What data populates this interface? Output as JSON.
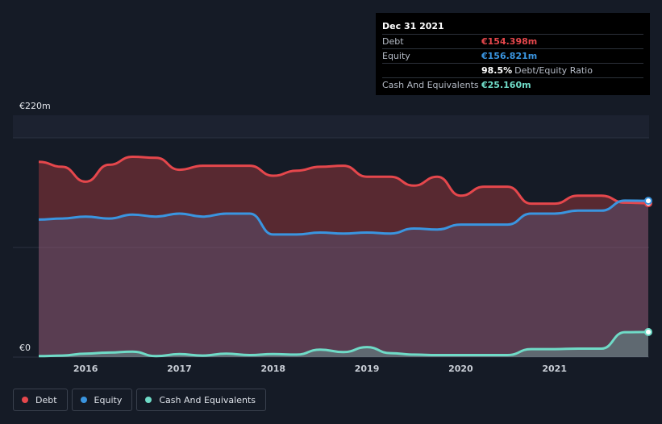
{
  "chart_data": {
    "type": "area",
    "title": "",
    "y_unit": "€m",
    "ylim": [
      0,
      220
    ],
    "y_axis_labels": {
      "top": "€220m",
      "bottom": "€0"
    },
    "x_ticks": [
      "2016",
      "2017",
      "2018",
      "2019",
      "2020",
      "2021"
    ],
    "x_tick_values": [
      2016.0,
      2017.0,
      2018.0,
      2019.0,
      2020.0,
      2021.0
    ],
    "xlim": [
      2015.5,
      2022.0
    ],
    "series": [
      {
        "name": "Debt",
        "color": "#e5474c",
        "x": [
          2015.5,
          2015.75,
          2016.0,
          2016.25,
          2016.5,
          2016.75,
          2017.0,
          2017.25,
          2017.5,
          2017.75,
          2018.0,
          2018.25,
          2018.5,
          2018.75,
          2019.0,
          2019.25,
          2019.5,
          2019.75,
          2020.0,
          2020.25,
          2020.5,
          2020.75,
          2021.0,
          2021.25,
          2021.5,
          2021.75,
          2022.0
        ],
        "values": [
          196,
          191,
          176,
          193,
          201,
          200,
          188,
          192,
          192,
          192,
          182,
          187,
          191,
          192,
          181,
          181,
          172,
          181,
          162,
          171,
          171,
          154,
          154,
          162,
          162,
          155,
          154.398
        ]
      },
      {
        "name": "Equity",
        "color": "#3a95e0",
        "x": [
          2015.5,
          2015.75,
          2016.0,
          2016.25,
          2016.5,
          2016.75,
          2017.0,
          2017.25,
          2017.5,
          2017.75,
          2018.0,
          2018.25,
          2018.5,
          2018.75,
          2019.0,
          2019.25,
          2019.5,
          2019.75,
          2020.0,
          2020.25,
          2020.5,
          2020.75,
          2021.0,
          2021.25,
          2021.5,
          2021.75,
          2022.0
        ],
        "values": [
          138,
          139,
          141,
          139,
          143,
          141,
          144,
          141,
          144,
          144,
          123,
          123,
          125,
          124,
          125,
          124,
          129,
          128,
          133,
          133,
          133,
          144,
          144,
          147,
          147,
          157,
          156.821
        ]
      },
      {
        "name": "Cash And Equivalents",
        "color": "#6fdbc7",
        "x": [
          2015.5,
          2015.75,
          2016.0,
          2016.25,
          2016.5,
          2016.75,
          2017.0,
          2017.25,
          2017.5,
          2017.75,
          2018.0,
          2018.25,
          2018.5,
          2018.75,
          2019.0,
          2019.25,
          2019.5,
          2019.75,
          2020.0,
          2020.25,
          2020.5,
          2020.75,
          2021.0,
          2021.25,
          2021.5,
          2021.75,
          2022.0
        ],
        "values": [
          1,
          1.5,
          3.5,
          4.5,
          5.5,
          1,
          3,
          1.5,
          3.5,
          2,
          3,
          2.5,
          7.5,
          5,
          10,
          4,
          2.5,
          2,
          2,
          2,
          2,
          8,
          8,
          8.5,
          8.5,
          25,
          25.16
        ]
      }
    ]
  },
  "tooltip": {
    "date": "Dec 31 2021",
    "rows": [
      {
        "label": "Debt",
        "value": "€154.398m",
        "color": "#e5474c"
      },
      {
        "label": "Equity",
        "value": "€156.821m",
        "color": "#3a95e0"
      },
      {
        "label": "",
        "value": "98.5%",
        "suffix": "Debt/Equity Ratio",
        "color": "#ffffff"
      },
      {
        "label": "Cash And Equivalents",
        "value": "€25.160m",
        "color": "#6fdbc7"
      }
    ]
  },
  "legend": [
    {
      "label": "Debt",
      "color": "#e5474c"
    },
    {
      "label": "Equity",
      "color": "#3a95e0"
    },
    {
      "label": "Cash And Equivalents",
      "color": "#6fdbc7"
    }
  ]
}
